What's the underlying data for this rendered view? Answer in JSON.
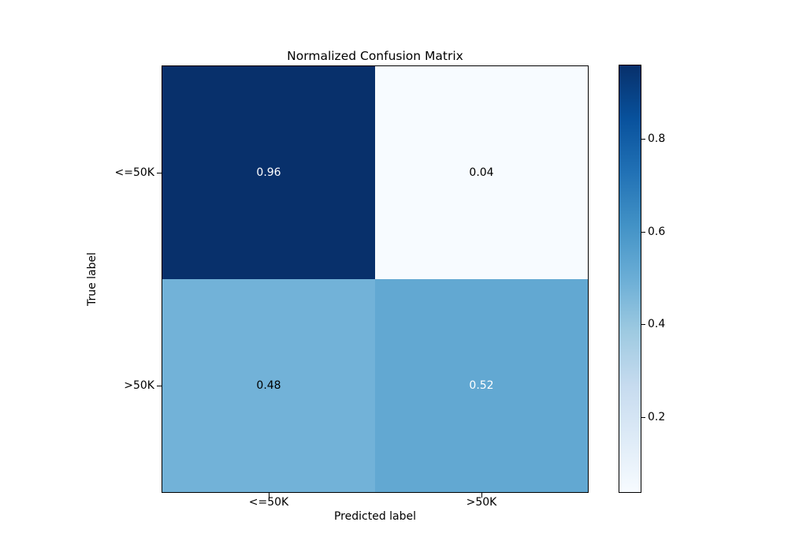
{
  "chart_data": {
    "type": "heatmap",
    "title": "Normalized Confusion Matrix",
    "xlabel": "Predicted label",
    "ylabel": "True label",
    "x_ticklabels": [
      "<=50K",
      ">50K"
    ],
    "y_ticklabels": [
      "<=50K",
      ">50K"
    ],
    "matrix": [
      [
        0.96,
        0.04
      ],
      [
        0.48,
        0.52
      ]
    ],
    "vmin": 0.04,
    "vmax": 0.96,
    "colormap": "Blues",
    "grid": false,
    "legend_position": "right-colorbar",
    "cells": [
      {
        "row": "<=50K",
        "col": "<=50K",
        "value": 0.96,
        "label": "0.96",
        "bg": "#08306b",
        "text_color": "#ffffff"
      },
      {
        "row": "<=50K",
        "col": ">50K",
        "value": 0.04,
        "label": "0.04",
        "bg": "#f7fbff",
        "text_color": "#000000"
      },
      {
        "row": ">50K",
        "col": "<=50K",
        "value": 0.48,
        "label": "0.48",
        "bg": "#72b2d8",
        "text_color": "#000000"
      },
      {
        "row": ">50K",
        "col": ">50K",
        "value": 0.52,
        "label": "0.52",
        "bg": "#62a8d2",
        "text_color": "#ffffff"
      }
    ],
    "colorbar": {
      "tick_labels": [
        "0.8",
        "0.6",
        "0.4",
        "0.2"
      ],
      "gradient_stops_bottom_to_top": [
        "#f7fbff",
        "#deebf7",
        "#c6dbef",
        "#9ecae1",
        "#6baed6",
        "#4292c6",
        "#2171b5",
        "#08519c",
        "#08306b"
      ]
    }
  }
}
